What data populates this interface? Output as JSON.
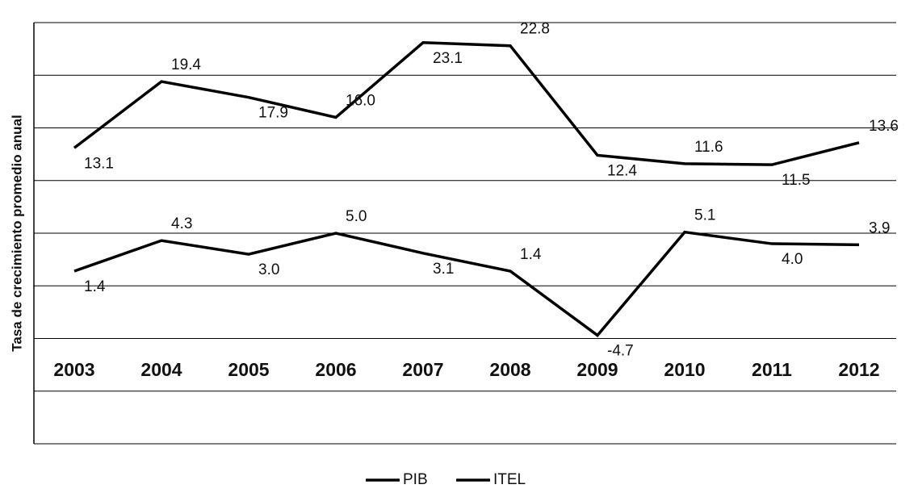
{
  "chart_data": {
    "type": "line",
    "y_label": "Tasa de crecimiento promedio anual",
    "categories": [
      "2003",
      "2004",
      "2005",
      "2006",
      "2007",
      "2008",
      "2009",
      "2010",
      "2011",
      "2012"
    ],
    "series": [
      {
        "name": "PIB",
        "color": "#000000",
        "values": [
          1.4,
          4.3,
          3.0,
          5.0,
          3.1,
          1.4,
          -4.7,
          5.1,
          4.0,
          3.9
        ],
        "value_labels": [
          "1.4",
          "4.3",
          "3.0",
          "5.0",
          "3.1",
          "1.4",
          "-4.7",
          "5.1",
          "4.0",
          "3.9"
        ]
      },
      {
        "name": "ITEL",
        "color": "#000000",
        "values": [
          13.1,
          19.4,
          17.9,
          16.0,
          23.1,
          22.8,
          12.4,
          11.6,
          11.5,
          13.6
        ],
        "value_labels": [
          "13.1",
          "19.4",
          "17.9",
          "16.0",
          "23.1",
          "22.8",
          "12.4",
          "11.6",
          "11.5",
          "13.6"
        ]
      }
    ],
    "ylim": [
      -15,
      25
    ],
    "yticks": [
      -15,
      -10,
      -5,
      0,
      5,
      10,
      15,
      20,
      25
    ],
    "grid": true,
    "legend": "bottom"
  }
}
